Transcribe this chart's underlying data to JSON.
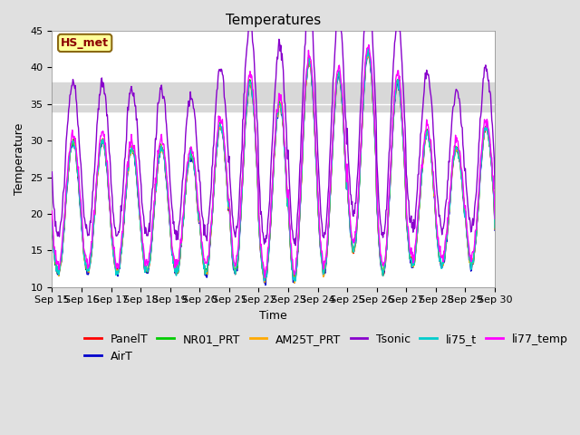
{
  "title": "Temperatures",
  "xlabel": "Time",
  "ylabel": "Temperature",
  "ylim": [
    10,
    45
  ],
  "xlim": [
    0,
    360
  ],
  "x_tick_labels": [
    "Sep 15",
    "Sep 16",
    "Sep 17",
    "Sep 18",
    "Sep 19",
    "Sep 20",
    "Sep 21",
    "Sep 22",
    "Sep 23",
    "Sep 24",
    "Sep 25",
    "Sep 26",
    "Sep 27",
    "Sep 28",
    "Sep 29",
    "Sep 30"
  ],
  "x_tick_positions": [
    0,
    24,
    48,
    72,
    96,
    120,
    144,
    168,
    192,
    216,
    240,
    264,
    288,
    312,
    336,
    360
  ],
  "shaded_band": [
    34,
    38
  ],
  "annotation_text": "HS_met",
  "annotation_box_color": "#ffff99",
  "annotation_text_color": "#8b0000",
  "annotation_border_color": "#8b6914",
  "series": [
    {
      "name": "PanelT",
      "color": "#ff0000",
      "lw": 1.0
    },
    {
      "name": "AirT",
      "color": "#0000cc",
      "lw": 1.0
    },
    {
      "name": "NR01_PRT",
      "color": "#00cc00",
      "lw": 1.0
    },
    {
      "name": "AM25T_PRT",
      "color": "#ffaa00",
      "lw": 1.0
    },
    {
      "name": "Tsonic",
      "color": "#8800cc",
      "lw": 1.0
    },
    {
      "name": "li75_t",
      "color": "#00cccc",
      "lw": 1.0
    },
    {
      "name": "li77_temp",
      "color": "#ff00ff",
      "lw": 1.0
    }
  ],
  "background_color": "#e0e0e0",
  "axes_background_color": "#ffffff",
  "grid_color": "#d8d8d8",
  "title_fontsize": 11,
  "label_fontsize": 9,
  "tick_fontsize": 8,
  "legend_fontsize": 9,
  "day_peaks": [
    30,
    30,
    29,
    29,
    28,
    32,
    38,
    35,
    41,
    39,
    42,
    38,
    31,
    29,
    32,
    19
  ],
  "day_mins": [
    12,
    12,
    12,
    12,
    12,
    12,
    12,
    11,
    11,
    12,
    15,
    12,
    13,
    13,
    13,
    18
  ]
}
